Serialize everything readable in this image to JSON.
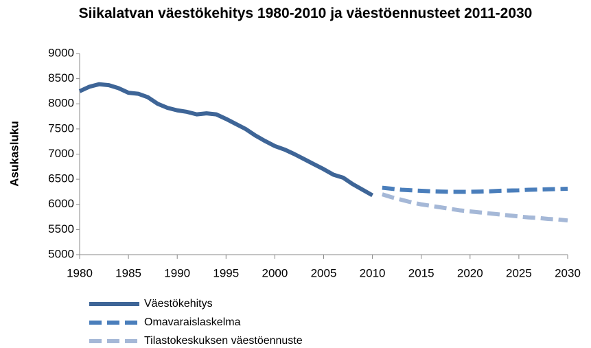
{
  "chart_data": {
    "type": "line",
    "title": "Siikalatvan väestökehitys 1980-2010 ja väestöennusteet 2011-2030",
    "y_label": "Asukasluku",
    "series": [
      {
        "name": "Väestökehitys",
        "color": "#3e6597",
        "dash": "solid",
        "x": [
          1980,
          1981,
          1982,
          1983,
          1984,
          1985,
          1986,
          1987,
          1988,
          1989,
          1990,
          1991,
          1992,
          1993,
          1994,
          1995,
          1996,
          1997,
          1998,
          1999,
          2000,
          2001,
          2002,
          2003,
          2004,
          2005,
          2006,
          2007,
          2008,
          2009,
          2010
        ],
        "values": [
          8250,
          8340,
          8390,
          8370,
          8310,
          8220,
          8200,
          8130,
          8000,
          7920,
          7870,
          7840,
          7790,
          7810,
          7790,
          7700,
          7600,
          7500,
          7370,
          7260,
          7160,
          7090,
          7000,
          6900,
          6800,
          6700,
          6590,
          6530,
          6400,
          6290,
          6180
        ]
      },
      {
        "name": "Omavaraislaskelma",
        "color": "#4a7ebb",
        "dash": "dashed",
        "x": [
          2011,
          2012,
          2013,
          2014,
          2015,
          2016,
          2017,
          2018,
          2019,
          2020,
          2021,
          2022,
          2023,
          2024,
          2025,
          2026,
          2027,
          2028,
          2029,
          2030
        ],
        "values": [
          6330,
          6310,
          6290,
          6280,
          6270,
          6260,
          6255,
          6250,
          6250,
          6250,
          6255,
          6260,
          6270,
          6275,
          6280,
          6290,
          6295,
          6300,
          6305,
          6310
        ]
      },
      {
        "name": "Tilastokeskuksen väestöennuste",
        "color": "#a5b8d7",
        "dash": "dashed",
        "x": [
          2011,
          2012,
          2013,
          2014,
          2015,
          2016,
          2017,
          2018,
          2019,
          2020,
          2021,
          2022,
          2023,
          2024,
          2025,
          2026,
          2027,
          2028,
          2029,
          2030
        ],
        "values": [
          6200,
          6140,
          6090,
          6040,
          6000,
          5970,
          5940,
          5910,
          5880,
          5860,
          5840,
          5820,
          5800,
          5780,
          5760,
          5740,
          5730,
          5710,
          5700,
          5680
        ]
      }
    ],
    "xlim": [
      1980,
      2030
    ],
    "xticks": [
      1980,
      1985,
      1990,
      1995,
      2000,
      2005,
      2010,
      2015,
      2020,
      2025,
      2030
    ],
    "ylim": [
      5000,
      9000
    ],
    "yticks": [
      5000,
      5500,
      6000,
      6500,
      7000,
      7500,
      8000,
      8500,
      9000
    ],
    "grid": false,
    "legend": "bottom-left"
  }
}
